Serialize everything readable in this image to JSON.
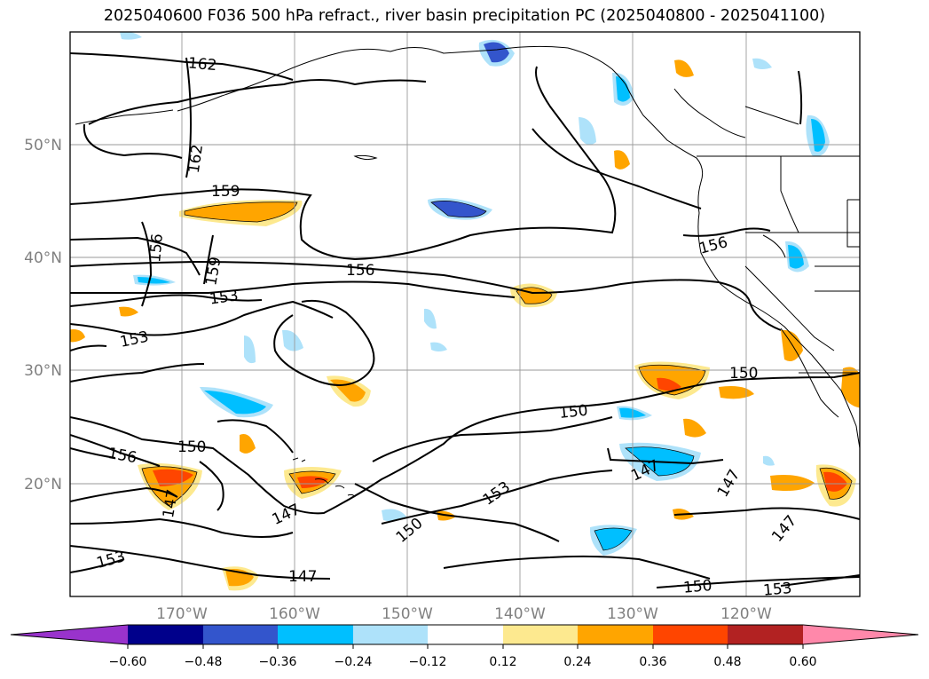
{
  "title": "2025040600 F036 500 hPa refract., river basin precipitation PC (2025040800 - 2025041100)",
  "lat_labels": [
    "50°N",
    "40°N",
    "30°N",
    "20°N"
  ],
  "lon_labels": [
    "170°W",
    "160°W",
    "150°W",
    "140°W",
    "130°W",
    "120°W"
  ],
  "contour_labels": [
    "162",
    "162",
    "159",
    "159",
    "156",
    "156",
    "156",
    "156",
    "153",
    "153",
    "153",
    "153",
    "153",
    "150",
    "150",
    "150",
    "150",
    "150",
    "147",
    "147",
    "147",
    "147",
    "147"
  ],
  "colorbar": {
    "colors": [
      "#9933cc",
      "#00008b",
      "#3355cc",
      "#00bfff",
      "#aee2fa",
      "#ffffff",
      "#fde98f",
      "#ffa500",
      "#ff4500",
      "#b22222",
      "#ff88aa"
    ],
    "tick_labels": [
      "−0.60",
      "−0.48",
      "−0.36",
      "−0.24",
      "−0.12",
      "0.12",
      "0.24",
      "0.36",
      "0.48",
      "0.60"
    ]
  }
}
